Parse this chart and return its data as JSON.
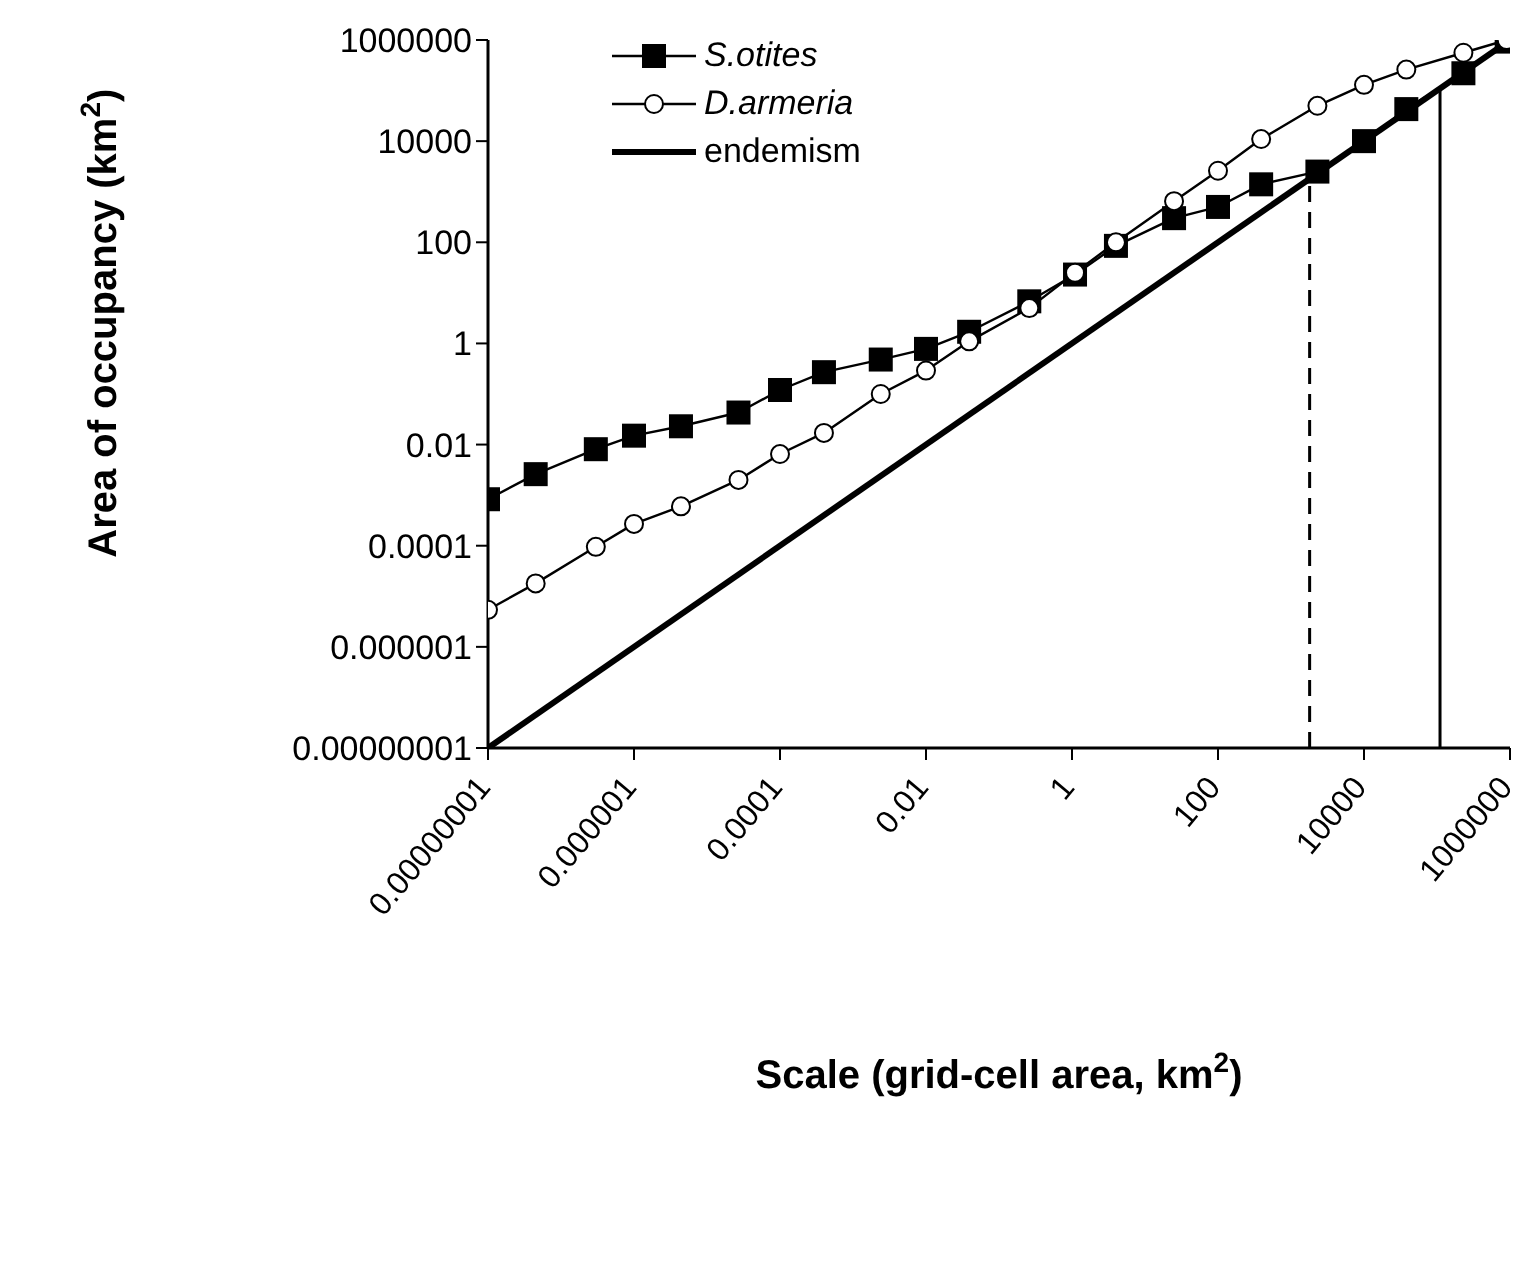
{
  "chart_data": {
    "type": "line",
    "xlabel": "Scale (grid-cell area, km$^{2}$)",
    "ylabel": "Area of occupancy (km$^{2}$)",
    "log": "xy",
    "grid": false,
    "legend": "top left",
    "xlim": [
      1e-08,
      1000000
    ],
    "ylim": [
      1e-08,
      1000000
    ],
    "xticks": [
      {
        "value": 1e-08,
        "label": "0.00000001"
      },
      {
        "value": 1e-06,
        "label": "0.000001"
      },
      0.0001,
      0.01,
      1,
      100,
      10000,
      1000000
    ],
    "yticks": [
      {
        "value": 1e-08,
        "label": "0.00000001"
      },
      {
        "value": 1e-06,
        "label": "0.000001"
      },
      0.0001,
      0.01,
      1,
      100,
      10000,
      1000000
    ],
    "series": [
      {
        "name": "S.otites",
        "color": "#000000",
        "marker": "square",
        "x": [
          1e-08,
          4.5e-08,
          3e-07,
          1e-06,
          4.4e-06,
          2.7e-05,
          0.0001,
          0.0004,
          0.0024,
          0.01,
          0.039,
          0.26,
          1.1,
          4,
          25,
          100,
          390,
          2300,
          10000,
          38000,
          230000,
          900000
        ],
        "values": [
          0.00083,
          0.0026,
          0.0081,
          0.015,
          0.023,
          0.043,
          0.12,
          0.27,
          0.48,
          0.78,
          1.7,
          6.8,
          23,
          85,
          300,
          500,
          1400,
          2500,
          10000,
          43000,
          220000,
          930000
        ]
      },
      {
        "name": "D.armeria",
        "color": "#000000",
        "marker": "circle",
        "x": [
          1e-08,
          4.5e-08,
          3e-07,
          1e-06,
          4.4e-06,
          2.7e-05,
          0.0001,
          0.0004,
          0.0024,
          0.01,
          0.039,
          0.26,
          1.1,
          4,
          25,
          100,
          390,
          2300,
          10000,
          38000,
          230000,
          900000
        ],
        "values": [
          5.4e-06,
          1.8e-05,
          9.5e-05,
          0.00027,
          0.0006,
          0.002,
          0.0065,
          0.017,
          0.1,
          0.29,
          1.1,
          5,
          25,
          100,
          650,
          2600,
          11000,
          50000,
          130000,
          260000,
          560000,
          1000000
        ]
      },
      {
        "name": "endemism",
        "color": "#000000",
        "marker": "none",
        "x": [
          1e-08,
          1000000
        ],
        "values": [
          1e-08,
          1000000
        ]
      }
    ],
    "ref_lines": [
      {
        "axis": "x",
        "value": 1800,
        "line_style": "dashed",
        "color": "#000000"
      },
      {
        "axis": "x",
        "value": 110000,
        "line_style": "solid",
        "color": "#000000"
      }
    ]
  }
}
